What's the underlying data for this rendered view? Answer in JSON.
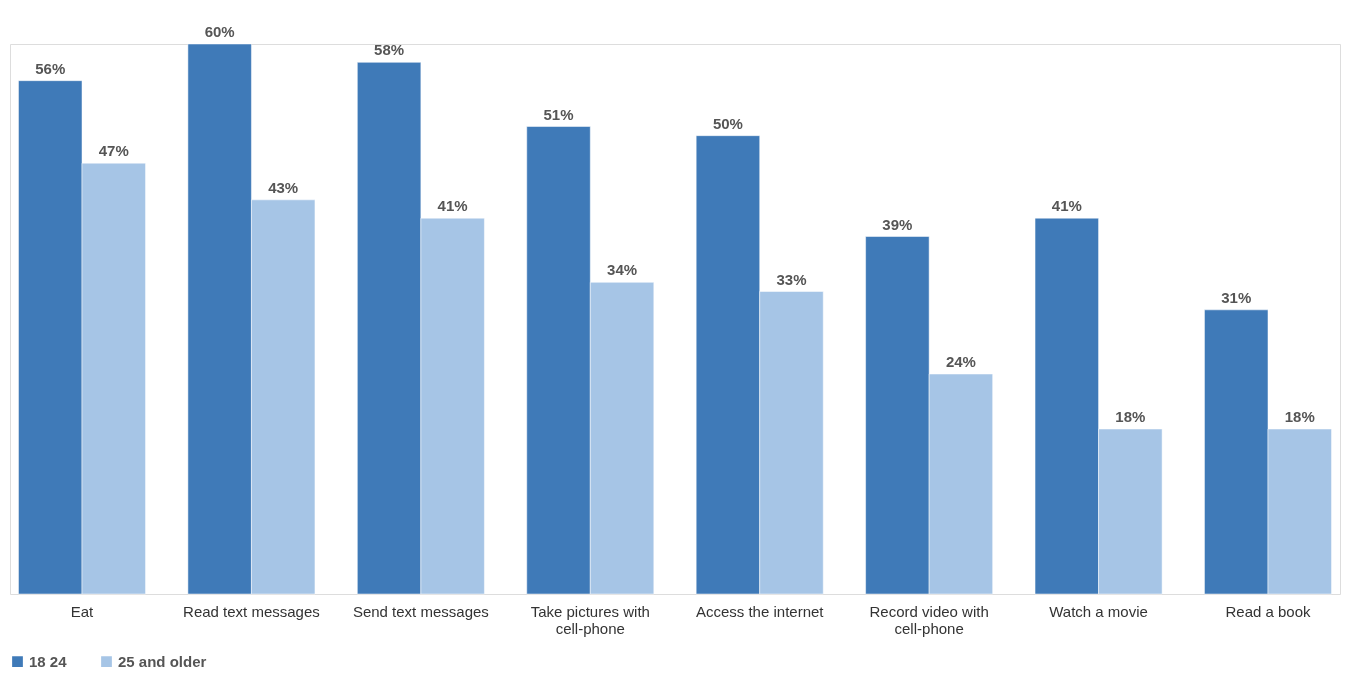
{
  "chart_data": {
    "type": "bar",
    "categories": [
      "Eat",
      "Read text messages",
      "Send text messages",
      "Take pictures with cell-phone",
      "Access the internet",
      "Record video with cell-phone",
      "Watch a movie",
      "Read a book"
    ],
    "series": [
      {
        "name": "18 24",
        "color": "#3f7ab8",
        "values": [
          56,
          60,
          58,
          51,
          50,
          39,
          41,
          31
        ],
        "value_labels": [
          "56%",
          "60%",
          "58%",
          "51%",
          "50%",
          "39%",
          "41%",
          "31%"
        ]
      },
      {
        "name": "25 and older",
        "color": "#a6c5e6",
        "values": [
          47,
          43,
          41,
          34,
          33,
          24,
          18,
          18
        ],
        "value_labels": [
          "47%",
          "43%",
          "41%",
          "34%",
          "33%",
          "24%",
          "18%",
          "18%"
        ]
      }
    ],
    "legend": "bottom",
    "grid": false
  }
}
